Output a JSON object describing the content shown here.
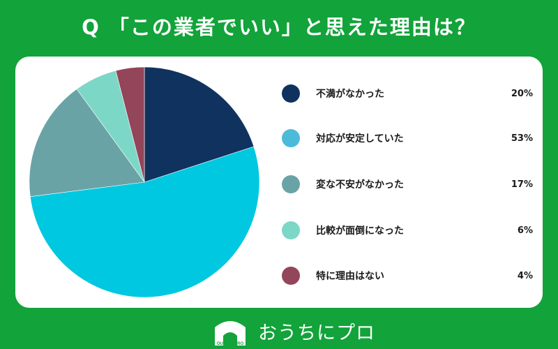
{
  "title": "Q 「この業者でいい」と思えた理由は？",
  "chart_data": {
    "type": "pie",
    "title": "",
    "slices": [
      {
        "label": "不満がなかった",
        "value": 20,
        "display": "20%",
        "color": "#10325f"
      },
      {
        "label": "対応が安定していた",
        "value": 53,
        "display": "53%",
        "color": "#00c8e0"
      },
      {
        "label": "変な不安がなかった",
        "value": 17,
        "display": "17%",
        "color": "#6aa3a6"
      },
      {
        "label": "比較が面倒になった",
        "value": 6,
        "display": "6%",
        "color": "#7dd7c7"
      },
      {
        "label": "特に理由はない",
        "value": 4,
        "display": "4%",
        "color": "#93455a"
      }
    ],
    "start_angle_deg": 0,
    "direction": "clockwise",
    "legend_placement": "right"
  },
  "legend_colors": [
    "#10325f",
    "#4cbad9",
    "#6aa3a6",
    "#7dd7c7",
    "#93455a"
  ],
  "footer": {
    "brand_text": "おうちにプロ",
    "logo_small_text": "OUCHINIPRO",
    "icon": "house-logo-icon"
  },
  "colors": {
    "background": "#12a33a",
    "card": "#ffffff"
  }
}
